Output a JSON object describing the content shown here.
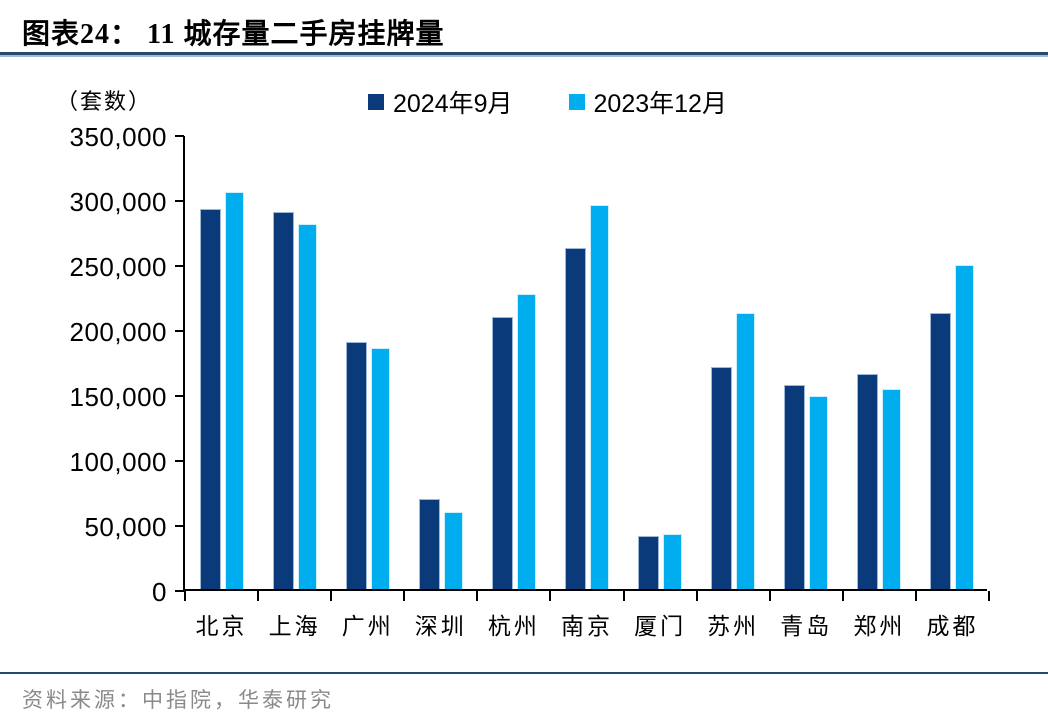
{
  "header": {
    "title": "图表24：  11 城存量二手房挂牌量"
  },
  "chart_data": {
    "type": "bar",
    "title": "11 城存量二手房挂牌量",
    "unit_label": "（套数）",
    "categories": [
      "北京",
      "上海",
      "广州",
      "深圳",
      "杭州",
      "南京",
      "厦门",
      "苏州",
      "青岛",
      "郑州",
      "成都"
    ],
    "series": [
      {
        "name": "2024年9月",
        "color": "#0b3a7a",
        "values": [
          292500,
          290000,
          190000,
          69000,
          209000,
          262000,
          41000,
          171000,
          157000,
          165500,
          212000
        ]
      },
      {
        "name": "2023年12月",
        "color": "#00aeef",
        "values": [
          305000,
          281000,
          185000,
          59000,
          227000,
          295000,
          42500,
          212500,
          148500,
          153500,
          249500
        ]
      }
    ],
    "ylabel": "套数",
    "ylim": [
      0,
      350000
    ],
    "ytick_step": 50000,
    "ytick_labels": [
      "0",
      "50,000",
      "100,000",
      "150,000",
      "200,000",
      "250,000",
      "300,000",
      "350,000"
    ],
    "legend_position": "top",
    "grid": false
  },
  "footer": {
    "source": "资料来源：中指院，华泰研究"
  }
}
